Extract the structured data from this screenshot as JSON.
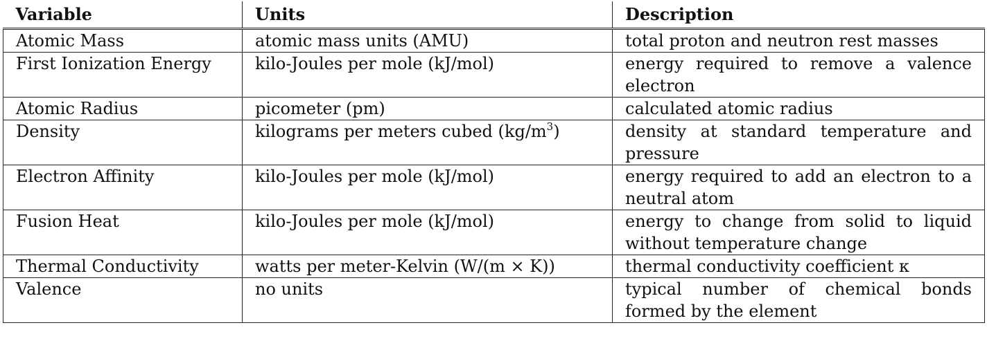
{
  "table": {
    "headers": [
      "Variable",
      "Units",
      "Description"
    ],
    "rows": [
      {
        "variable": "Atomic Mass",
        "units": "atomic mass units (AMU)",
        "description": "total proton and neutron rest masses"
      },
      {
        "variable": "First Ionization Energy",
        "units": "kilo-Joules per mole (kJ/mol)",
        "description": "energy required to remove a valence electron"
      },
      {
        "variable": "Atomic Radius",
        "units": "picometer (pm)",
        "description": "calculated atomic radius"
      },
      {
        "variable": "Density",
        "units": "kilograms per meters cubed (kg/m",
        "units_superscript": "3",
        "units_suffix": ")",
        "description": "density at standard temperature and pressure"
      },
      {
        "variable": "Electron Affinity",
        "units": "kilo-Joules per mole (kJ/mol)",
        "description": "energy required to add an electron to a neutral atom"
      },
      {
        "variable": "Fusion Heat",
        "units": "kilo-Joules per mole (kJ/mol)",
        "description": "energy to change from solid to liquid without temperature change"
      },
      {
        "variable": "Thermal Conductivity",
        "units": "watts per meter-Kelvin (W/(m × K))",
        "description": "thermal conductivity coefficient κ"
      },
      {
        "variable": "Valence",
        "units": "no units",
        "description": "typical number of chemical bonds formed by the element"
      }
    ]
  }
}
